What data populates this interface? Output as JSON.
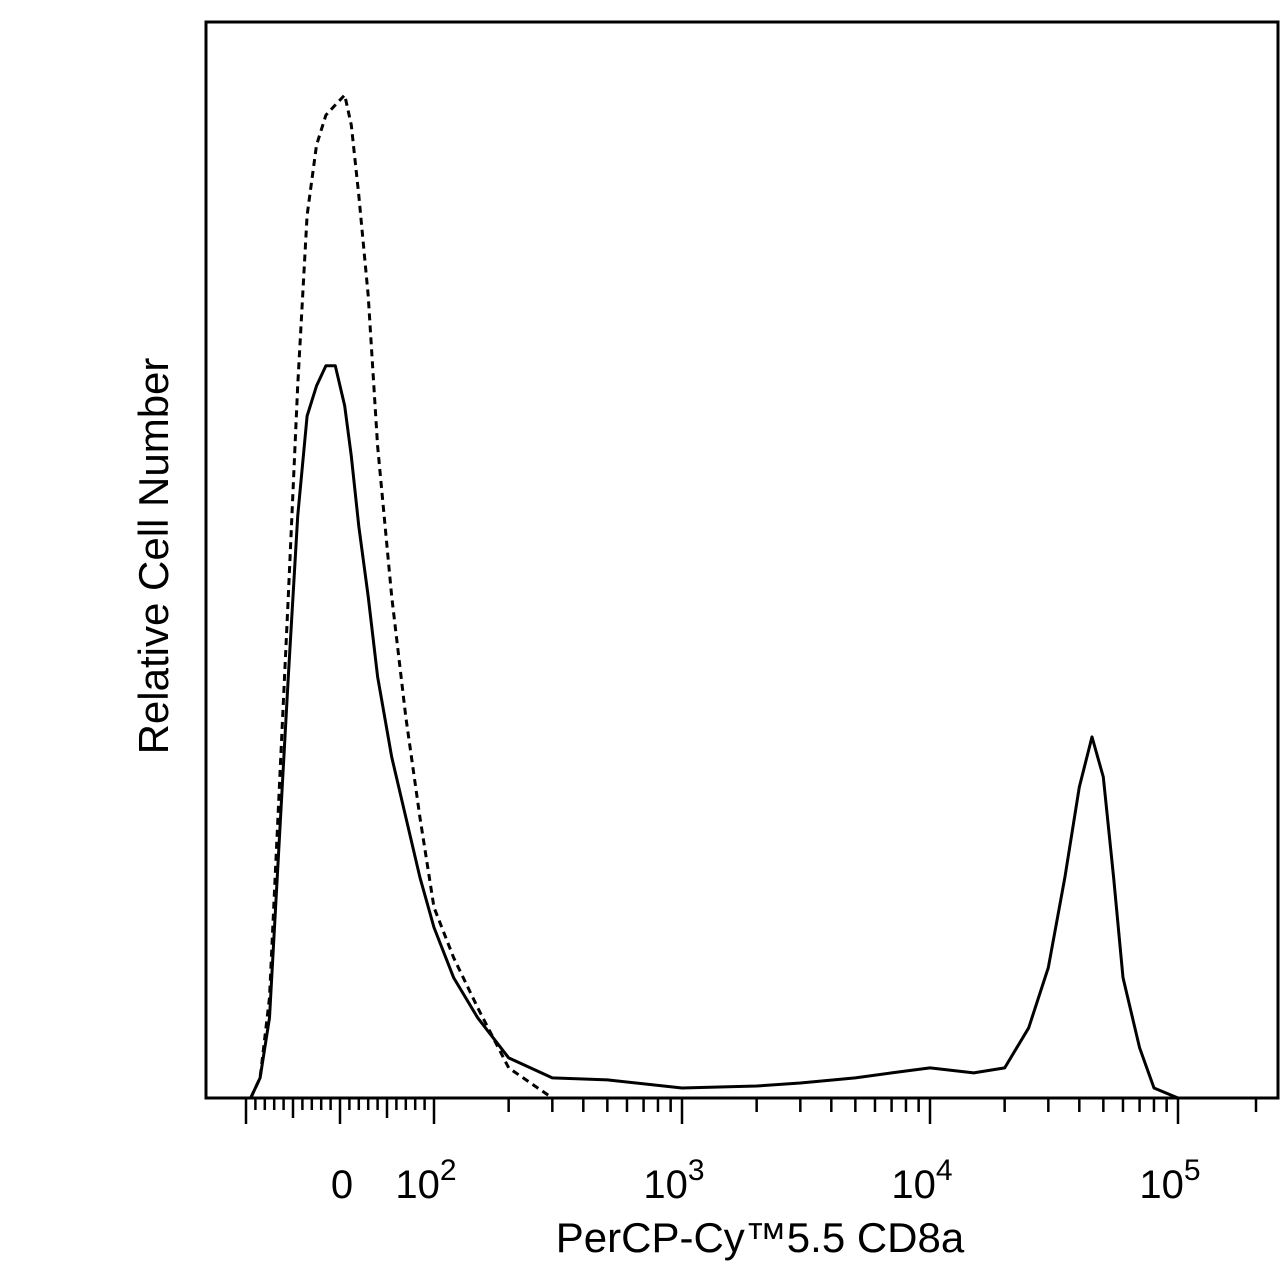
{
  "chart_data": {
    "type": "line",
    "title": "",
    "xlabel": "PerCP-Cy™5.5 CD8a",
    "ylabel": "Relative Cell Number",
    "x_scale": "biexponential",
    "xlim": [
      -150,
      180000
    ],
    "ylim": [
      0,
      1
    ],
    "grid": false,
    "legend": "none",
    "x_ticks": [
      {
        "value": 0,
        "base": "0",
        "exp": ""
      },
      {
        "value": 100,
        "base": "10",
        "exp": "2"
      },
      {
        "value": 1000,
        "base": "10",
        "exp": "3"
      },
      {
        "value": 10000,
        "base": "10",
        "exp": "4"
      },
      {
        "value": 100000,
        "base": "10",
        "exp": "5"
      }
    ],
    "series": [
      {
        "style": "dashed",
        "color": "#000000",
        "x": [
          -95,
          -85,
          -75,
          -65,
          -55,
          -45,
          -35,
          -25,
          -15,
          -5,
          5,
          12,
          20,
          30,
          40,
          55,
          70,
          85,
          100,
          120,
          150,
          200,
          300,
          500,
          1000,
          3000,
          10000,
          30000,
          100000,
          150000
        ],
        "y": [
          0.0,
          0.02,
          0.1,
          0.3,
          0.5,
          0.71,
          0.88,
          0.95,
          0.98,
          0.99,
          1.0,
          0.97,
          0.9,
          0.8,
          0.65,
          0.5,
          0.38,
          0.28,
          0.19,
          0.14,
          0.09,
          0.03,
          0.0,
          0.0,
          0.0,
          0.0,
          0.0,
          0.0,
          0.0,
          0.0
        ]
      },
      {
        "style": "solid",
        "color": "#000000",
        "x": [
          -95,
          -85,
          -75,
          -65,
          -55,
          -45,
          -35,
          -25,
          -15,
          -5,
          5,
          12,
          20,
          30,
          40,
          55,
          70,
          85,
          100,
          120,
          150,
          200,
          300,
          500,
          1000,
          2000,
          3000,
          5000,
          7000,
          10000,
          15000,
          20000,
          25000,
          30000,
          35000,
          40000,
          45000,
          50000,
          55000,
          60000,
          70000,
          80000,
          100000
        ],
        "y": [
          0.0,
          0.02,
          0.08,
          0.25,
          0.42,
          0.58,
          0.68,
          0.71,
          0.73,
          0.73,
          0.69,
          0.64,
          0.57,
          0.5,
          0.42,
          0.34,
          0.28,
          0.22,
          0.17,
          0.12,
          0.08,
          0.04,
          0.02,
          0.018,
          0.01,
          0.012,
          0.015,
          0.02,
          0.025,
          0.03,
          0.025,
          0.03,
          0.07,
          0.13,
          0.22,
          0.31,
          0.36,
          0.32,
          0.22,
          0.12,
          0.05,
          0.01,
          0.0
        ]
      }
    ]
  }
}
